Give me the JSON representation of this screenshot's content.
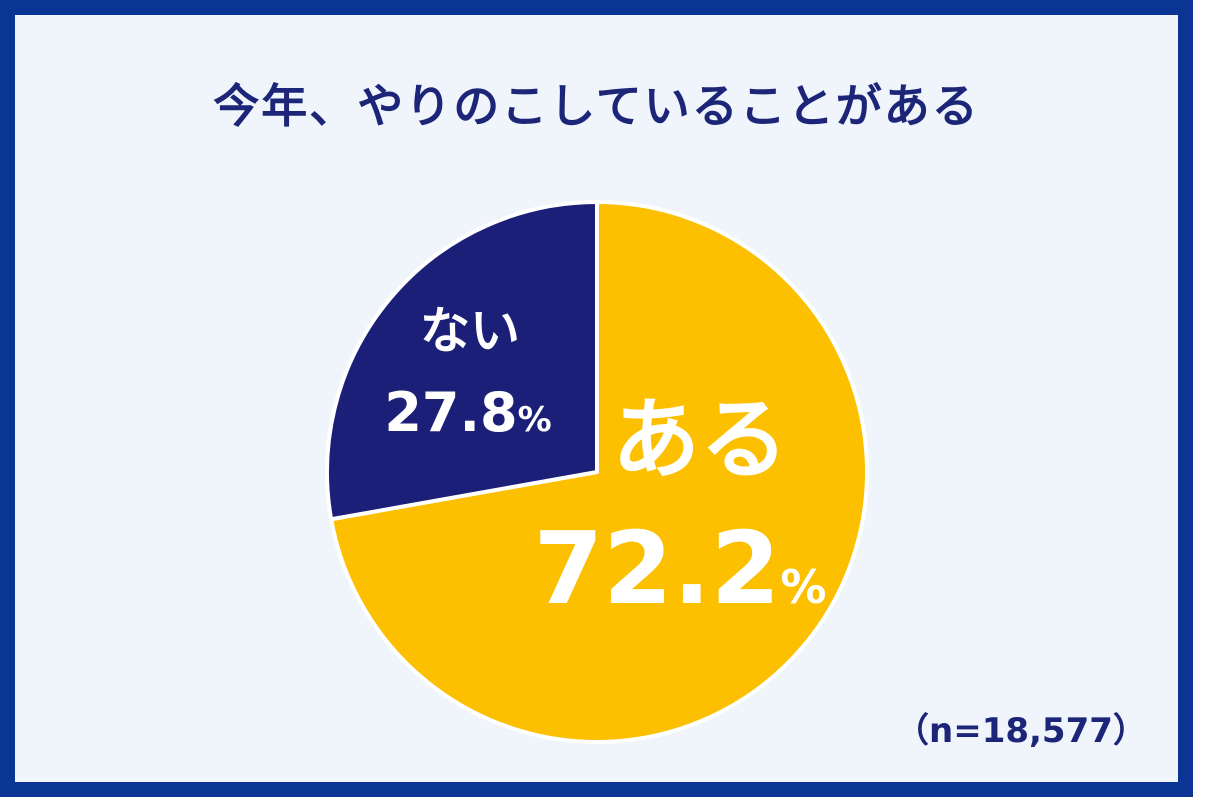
{
  "chart_data": {
    "type": "pie",
    "title": "今年、やりのこしていることがある",
    "slices": [
      {
        "label": "ある",
        "value": 72.2,
        "value_text": "72.2",
        "unit": "%",
        "color": "#fcc000"
      },
      {
        "label": "ない",
        "value": 27.8,
        "value_text": "27.8",
        "unit": "%",
        "color": "#1c1f77"
      }
    ],
    "sample_size": "（n=18,577）",
    "start_angle": "12 o'clock",
    "direction": "clockwise"
  },
  "colors": {
    "frame": "#0a3594",
    "background": "#eff5fb",
    "title": "#1c2577",
    "slice_border": "#ffffff"
  }
}
